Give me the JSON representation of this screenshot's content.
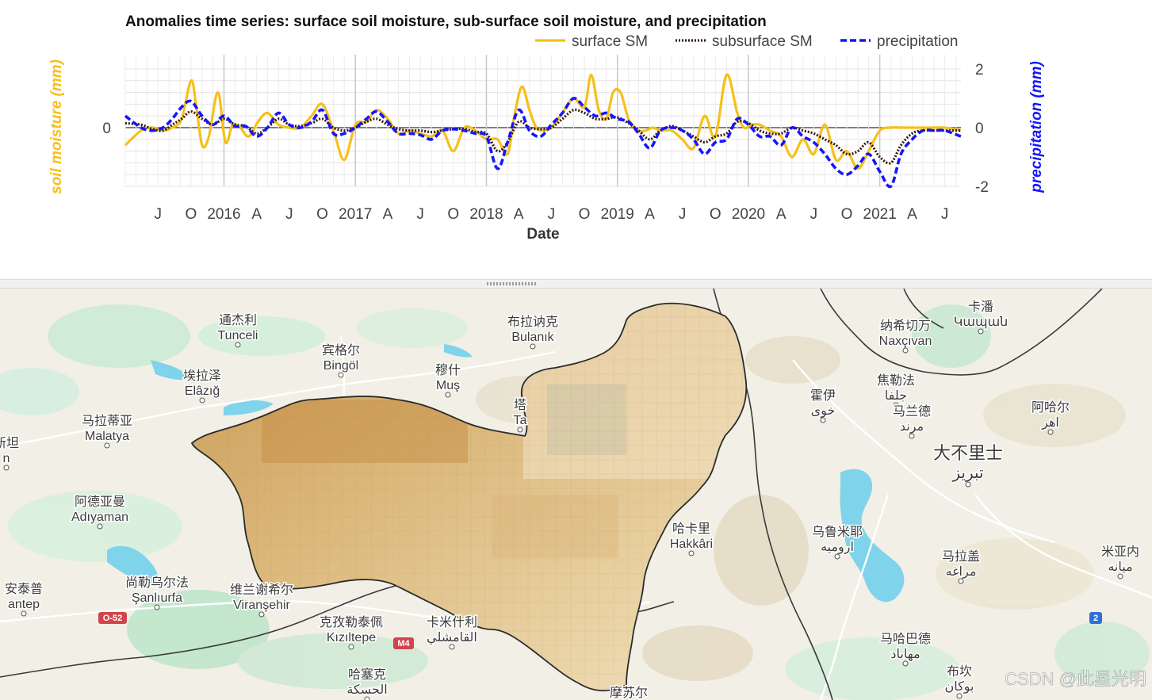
{
  "chart_data": {
    "type": "line",
    "title": "Anomalies time series: surface soil moisture, sub-surface soil moisture, and precipitation",
    "xlabel": "Date",
    "ylabel_left": "soil moisture (mm)",
    "ylabel_right": "precipitation (mm)",
    "x_ticks": [
      "J",
      "O",
      "2016",
      "A",
      "J",
      "O",
      "2017",
      "A",
      "J",
      "O",
      "2018",
      "A",
      "J",
      "O",
      "2019",
      "A",
      "J",
      "O",
      "2020",
      "A",
      "J",
      "O",
      "2021",
      "A",
      "J"
    ],
    "y_left_ticks": [
      "0"
    ],
    "y_right_ticks": [
      "2",
      "0",
      "-2"
    ],
    "xlim": [
      "2015-04-01",
      "2021-08-15"
    ],
    "ylim_right": [
      -2,
      2
    ],
    "ylim_left": [
      -2,
      2
    ],
    "grid": true,
    "legend_position": "top-right",
    "series": [
      {
        "name": "surface SM",
        "color": "#f6c019",
        "style": "solid",
        "axis": "left",
        "x": [
          "2015-04-01",
          "2015-05-15",
          "2015-06-15",
          "2015-07-15",
          "2015-08-10",
          "2015-09-05",
          "2015-10-01",
          "2015-10-15",
          "2015-11-01",
          "2015-11-20",
          "2015-12-15",
          "2016-01-05",
          "2016-01-25",
          "2016-02-15",
          "2016-03-10",
          "2016-04-05",
          "2016-05-01",
          "2016-06-01",
          "2016-07-01",
          "2016-08-01",
          "2016-09-01",
          "2016-10-01",
          "2016-11-01",
          "2016-12-01",
          "2017-01-01",
          "2017-02-01",
          "2017-03-01",
          "2017-04-01",
          "2017-05-01",
          "2017-06-01",
          "2017-07-01",
          "2017-08-01",
          "2017-09-01",
          "2017-10-01",
          "2017-11-01",
          "2017-12-01",
          "2018-01-01",
          "2018-02-01",
          "2018-03-01",
          "2018-03-20",
          "2018-04-10",
          "2018-05-01",
          "2018-05-20",
          "2018-06-10",
          "2018-07-01",
          "2018-08-01",
          "2018-09-01",
          "2018-10-01",
          "2018-10-20",
          "2018-11-10",
          "2018-12-01",
          "2018-12-20",
          "2019-01-10",
          "2019-02-01",
          "2019-03-01",
          "2019-03-20",
          "2019-04-10",
          "2019-05-01",
          "2019-06-01",
          "2019-07-01",
          "2019-08-01",
          "2019-09-01",
          "2019-10-01",
          "2019-11-01",
          "2019-12-01",
          "2019-12-20",
          "2020-01-10",
          "2020-02-01",
          "2020-03-01",
          "2020-04-01",
          "2020-05-01",
          "2020-06-01",
          "2020-07-01",
          "2020-08-01",
          "2020-09-01",
          "2020-10-01",
          "2020-11-01",
          "2020-12-01",
          "2021-01-01",
          "2021-02-01",
          "2021-03-01",
          "2021-04-01",
          "2021-05-01",
          "2021-06-01",
          "2021-07-01",
          "2021-08-15"
        ],
        "values": [
          -0.6,
          -0.1,
          0.0,
          -0.1,
          0.0,
          0.3,
          1.6,
          0.8,
          -0.6,
          -0.3,
          1.2,
          -0.5,
          0.1,
          0.0,
          -0.3,
          0.2,
          0.5,
          0.1,
          0.0,
          0.0,
          0.4,
          0.8,
          -0.1,
          -1.1,
          0.1,
          0.2,
          0.6,
          0.3,
          -0.2,
          -0.1,
          -0.2,
          -0.3,
          -0.1,
          -0.8,
          0.0,
          -0.1,
          -0.4,
          -0.4,
          -0.9,
          0.4,
          1.4,
          0.6,
          0.0,
          -0.1,
          0.0,
          0.5,
          1.0,
          0.7,
          1.8,
          0.6,
          0.3,
          1.2,
          1.2,
          0.3,
          -0.1,
          -0.1,
          0.0,
          -0.1,
          -0.1,
          -0.4,
          -0.7,
          0.4,
          -0.3,
          1.8,
          0.5,
          0.0,
          0.1,
          0.1,
          -0.1,
          -0.3,
          -1.0,
          -0.4,
          -0.9,
          0.1,
          -1.1,
          -0.8,
          -1.4,
          -0.8,
          -0.1,
          0.0,
          0.0,
          0.0,
          0.0,
          0.0,
          0.0,
          -0.1
        ]
      },
      {
        "name": "subsurface SM",
        "color": "#3a1a0e",
        "style": "dotted",
        "axis": "left",
        "x": [
          "2015-04-01",
          "2015-05-15",
          "2015-06-15",
          "2015-07-15",
          "2015-08-10",
          "2015-09-05",
          "2015-10-01",
          "2015-11-01",
          "2015-12-01",
          "2016-01-01",
          "2016-02-01",
          "2016-03-01",
          "2016-04-01",
          "2016-05-01",
          "2016-06-01",
          "2016-07-01",
          "2016-08-01",
          "2016-09-01",
          "2016-10-01",
          "2016-11-01",
          "2016-12-01",
          "2017-01-01",
          "2017-02-01",
          "2017-03-01",
          "2017-04-01",
          "2017-05-01",
          "2017-06-01",
          "2017-07-01",
          "2017-08-01",
          "2017-09-01",
          "2017-10-01",
          "2017-11-01",
          "2017-12-01",
          "2018-01-01",
          "2018-02-01",
          "2018-03-01",
          "2018-04-01",
          "2018-05-01",
          "2018-06-01",
          "2018-07-01",
          "2018-08-01",
          "2018-09-01",
          "2018-10-01",
          "2018-11-01",
          "2018-12-01",
          "2019-01-01",
          "2019-02-01",
          "2019-03-01",
          "2019-04-01",
          "2019-05-01",
          "2019-06-01",
          "2019-07-01",
          "2019-08-01",
          "2019-09-01",
          "2019-10-01",
          "2019-11-01",
          "2019-12-01",
          "2020-01-01",
          "2020-02-01",
          "2020-03-01",
          "2020-04-01",
          "2020-05-01",
          "2020-06-01",
          "2020-07-01",
          "2020-08-01",
          "2020-09-01",
          "2020-10-01",
          "2020-11-01",
          "2020-12-01",
          "2021-01-01",
          "2021-02-01",
          "2021-03-01",
          "2021-04-01",
          "2021-05-01",
          "2021-06-01",
          "2021-07-01",
          "2021-08-15"
        ],
        "values": [
          0.15,
          0.1,
          -0.05,
          -0.1,
          0.1,
          0.3,
          0.55,
          0.3,
          0.1,
          0.3,
          0.1,
          0.05,
          -0.2,
          0.0,
          0.3,
          0.1,
          0.05,
          0.15,
          0.3,
          0.0,
          -0.1,
          0.0,
          0.2,
          0.3,
          0.1,
          -0.05,
          -0.1,
          -0.1,
          -0.15,
          -0.1,
          -0.05,
          -0.05,
          -0.15,
          -0.2,
          -0.8,
          -0.5,
          0.2,
          0.0,
          -0.05,
          0.0,
          0.3,
          0.6,
          0.5,
          0.3,
          0.3,
          0.35,
          0.15,
          -0.1,
          -0.4,
          -0.1,
          0.05,
          -0.1,
          -0.3,
          -0.5,
          -0.3,
          -0.2,
          0.2,
          0.15,
          -0.1,
          -0.2,
          -0.2,
          0.0,
          -0.1,
          -0.2,
          -0.4,
          -0.6,
          -0.9,
          -0.8,
          -0.5,
          -1.0,
          -1.2,
          -0.6,
          -0.2,
          -0.1,
          -0.1,
          -0.1,
          -0.1
        ]
      },
      {
        "name": "precipitation",
        "color": "#1515ff",
        "style": "dashed",
        "axis": "right",
        "x": [
          "2015-04-01",
          "2015-05-15",
          "2015-06-15",
          "2015-07-15",
          "2015-08-10",
          "2015-09-05",
          "2015-10-01",
          "2015-11-01",
          "2015-12-01",
          "2016-01-01",
          "2016-02-01",
          "2016-03-01",
          "2016-04-01",
          "2016-05-01",
          "2016-06-01",
          "2016-07-01",
          "2016-08-01",
          "2016-09-01",
          "2016-10-01",
          "2016-11-01",
          "2016-12-01",
          "2017-01-01",
          "2017-02-01",
          "2017-03-01",
          "2017-04-01",
          "2017-05-01",
          "2017-06-01",
          "2017-07-01",
          "2017-08-01",
          "2017-09-01",
          "2017-10-01",
          "2017-11-01",
          "2017-12-01",
          "2018-01-01",
          "2018-02-01",
          "2018-03-01",
          "2018-04-01",
          "2018-05-01",
          "2018-06-01",
          "2018-07-01",
          "2018-08-01",
          "2018-09-01",
          "2018-10-01",
          "2018-11-01",
          "2018-12-01",
          "2019-01-01",
          "2019-02-01",
          "2019-03-01",
          "2019-04-01",
          "2019-05-01",
          "2019-06-01",
          "2019-07-01",
          "2019-08-01",
          "2019-09-01",
          "2019-10-01",
          "2019-11-01",
          "2019-12-01",
          "2020-01-01",
          "2020-02-01",
          "2020-03-01",
          "2020-04-01",
          "2020-05-01",
          "2020-06-01",
          "2020-07-01",
          "2020-08-01",
          "2020-09-01",
          "2020-10-01",
          "2020-11-01",
          "2020-12-01",
          "2021-01-01",
          "2021-02-01",
          "2021-03-01",
          "2021-04-01",
          "2021-05-01",
          "2021-06-01",
          "2021-07-01",
          "2021-08-15"
        ],
        "values": [
          0.4,
          0.0,
          -0.1,
          0.0,
          0.3,
          0.7,
          0.9,
          0.4,
          0.1,
          0.4,
          0.05,
          0.05,
          -0.3,
          0.0,
          0.5,
          0.1,
          0.0,
          0.2,
          0.6,
          -0.2,
          -0.2,
          0.0,
          0.3,
          0.55,
          0.2,
          -0.2,
          -0.2,
          -0.25,
          -0.4,
          -0.1,
          -0.05,
          -0.1,
          -0.2,
          -0.3,
          -1.4,
          -0.5,
          0.6,
          -0.1,
          -0.3,
          0.1,
          0.5,
          1.0,
          0.7,
          0.4,
          0.5,
          0.3,
          0.2,
          -0.2,
          -0.7,
          -0.1,
          0.0,
          -0.1,
          -0.4,
          -0.9,
          -0.5,
          -0.4,
          0.3,
          0.1,
          -0.3,
          -0.3,
          -0.6,
          0.0,
          -0.3,
          -0.5,
          -0.9,
          -1.4,
          -1.6,
          -1.3,
          -0.9,
          -1.5,
          -2.0,
          -0.9,
          -0.4,
          -0.1,
          -0.1,
          -0.1,
          -0.3
        ]
      }
    ]
  },
  "map": {
    "watermark": "CSDN @此星光明",
    "road_badges": [
      "O-52",
      "M4",
      "2"
    ],
    "places": [
      {
        "zh": "通杰利",
        "local": "Tunceli"
      },
      {
        "zh": "布拉讷克",
        "local": "Bulanık"
      },
      {
        "zh": "宾格尔",
        "local": "Bingöl"
      },
      {
        "zh": "埃拉泽",
        "local": "Elâzığ"
      },
      {
        "zh": "穆什",
        "local": "Muş"
      },
      {
        "zh": "马拉蒂亚",
        "local": "Malatya"
      },
      {
        "zh": "阿德亚曼",
        "local": "Adıyaman"
      },
      {
        "zh": "尚勒乌尔法",
        "local": "Şanlıurfa"
      },
      {
        "zh": "维兰谢希尔",
        "local": "Viranşehir"
      },
      {
        "zh": "克孜勒泰佩",
        "local": "Kızıltepe"
      },
      {
        "zh": "卡米什利",
        "local": "القامشلي"
      },
      {
        "zh": "哈塞克",
        "local": "الحسكة"
      },
      {
        "zh": "哈卡里",
        "local": "Hakkâri"
      },
      {
        "zh": "纳希切万",
        "local": "Naxçıvan"
      },
      {
        "zh": "卡潘",
        "local": "Կապան"
      },
      {
        "zh": "焦勒法",
        "local": "جلفا"
      },
      {
        "zh": "霍伊",
        "local": "خوی"
      },
      {
        "zh": "马兰德",
        "local": "مرند"
      },
      {
        "zh": "阿哈尔",
        "local": "اهر"
      },
      {
        "zh": "大不里士",
        "local": "تبریز"
      },
      {
        "zh": "乌鲁米耶",
        "local": "ارومیه"
      },
      {
        "zh": "马拉盖",
        "local": "مراغه"
      },
      {
        "zh": "米亚内",
        "local": "میانه"
      },
      {
        "zh": "马哈巴德",
        "local": "مهاباد"
      },
      {
        "zh": "布坎",
        "local": "بوکان"
      },
      {
        "zh": "摩苏尔",
        "local": ""
      },
      {
        "zh": "安泰普",
        "local": "antep"
      },
      {
        "zh": "新坦",
        "local": "n"
      },
      {
        "zh": "塔",
        "local": "Ta"
      }
    ]
  }
}
